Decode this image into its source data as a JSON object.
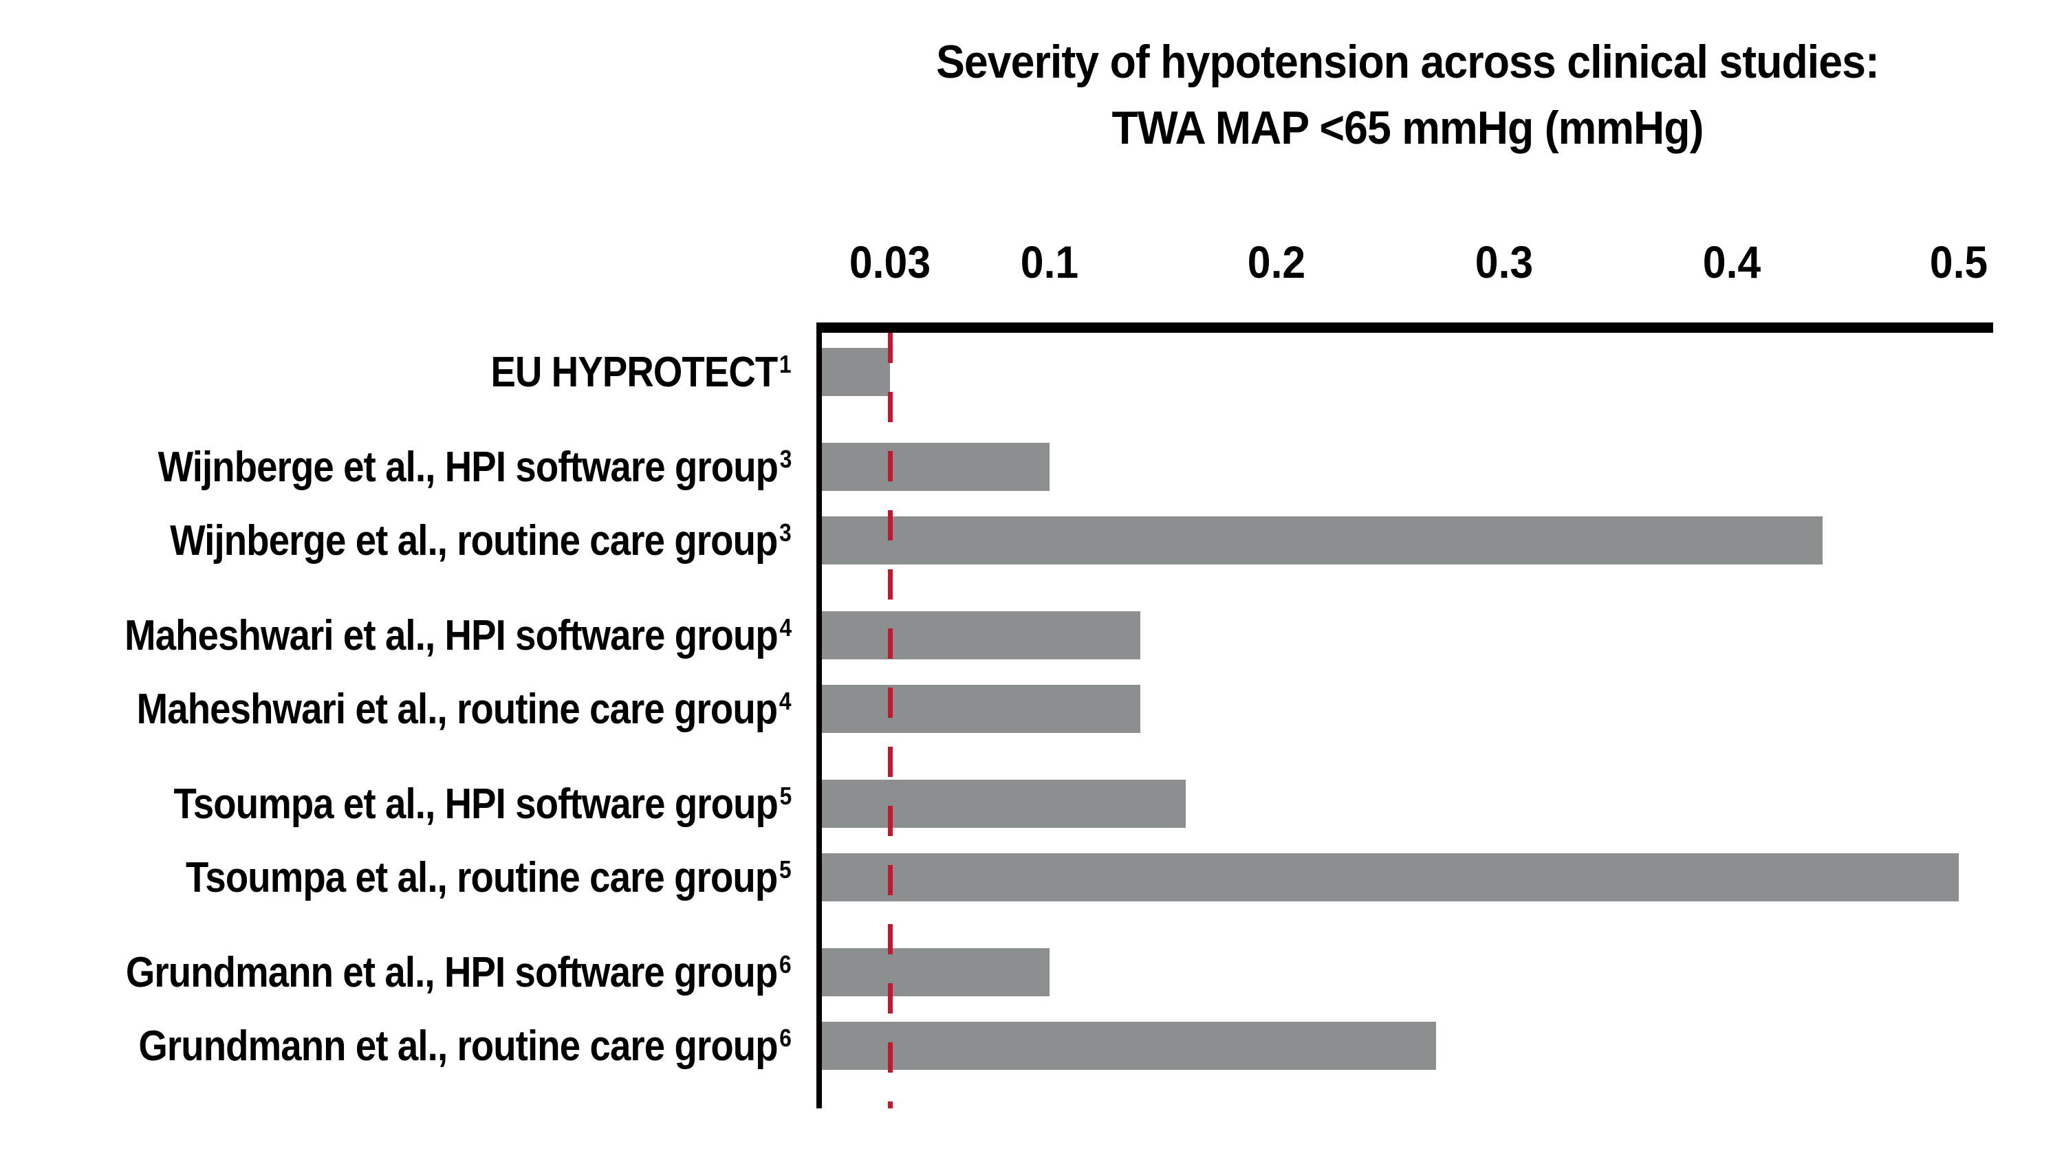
{
  "chart_data": {
    "type": "bar",
    "orientation": "horizontal",
    "title": [
      "Severity of hypotension across clinical studies:",
      "TWA MAP <65 mmHg (mmHg)"
    ],
    "x_ticks": [
      "0.03",
      "0.1",
      "0.2",
      "0.3",
      "0.4",
      "0.5"
    ],
    "x_tick_values": [
      0.03,
      0.1,
      0.2,
      0.3,
      0.4,
      0.5
    ],
    "xlim": [
      0,
      0.515
    ],
    "grid": false,
    "legend": false,
    "reference_line": {
      "value": 0.03,
      "style": "dashed",
      "color": "#C0182F"
    },
    "colors": {
      "bar": "#8C8F90",
      "reference": "#C0182F",
      "axis": "#000000",
      "text": "#000000"
    },
    "bars": [
      {
        "label": "EU HYPROTECT",
        "superscript": "1",
        "value": 0.03,
        "group": 0
      },
      {
        "label": "Wijnberge et al., HPI software group",
        "superscript": "3",
        "value": 0.1,
        "group": 1
      },
      {
        "label": "Wijnberge et al., routine care group",
        "superscript": "3",
        "value": 0.44,
        "group": 1
      },
      {
        "label": "Maheshwari et al., HPI software group",
        "superscript": "4",
        "value": 0.14,
        "group": 2
      },
      {
        "label": "Maheshwari et al., routine care group",
        "superscript": "4",
        "value": 0.14,
        "group": 2
      },
      {
        "label": "Tsoumpa et al., HPI software group",
        "superscript": "5",
        "value": 0.16,
        "group": 3
      },
      {
        "label": "Tsoumpa et al., routine care group",
        "superscript": "5",
        "value": 0.5,
        "group": 3
      },
      {
        "label": "Grundmann et al., HPI software group",
        "superscript": "6",
        "value": 0.1,
        "group": 4
      },
      {
        "label": "Grundmann et al., routine care group",
        "superscript": "6",
        "value": 0.27,
        "group": 4
      }
    ]
  }
}
